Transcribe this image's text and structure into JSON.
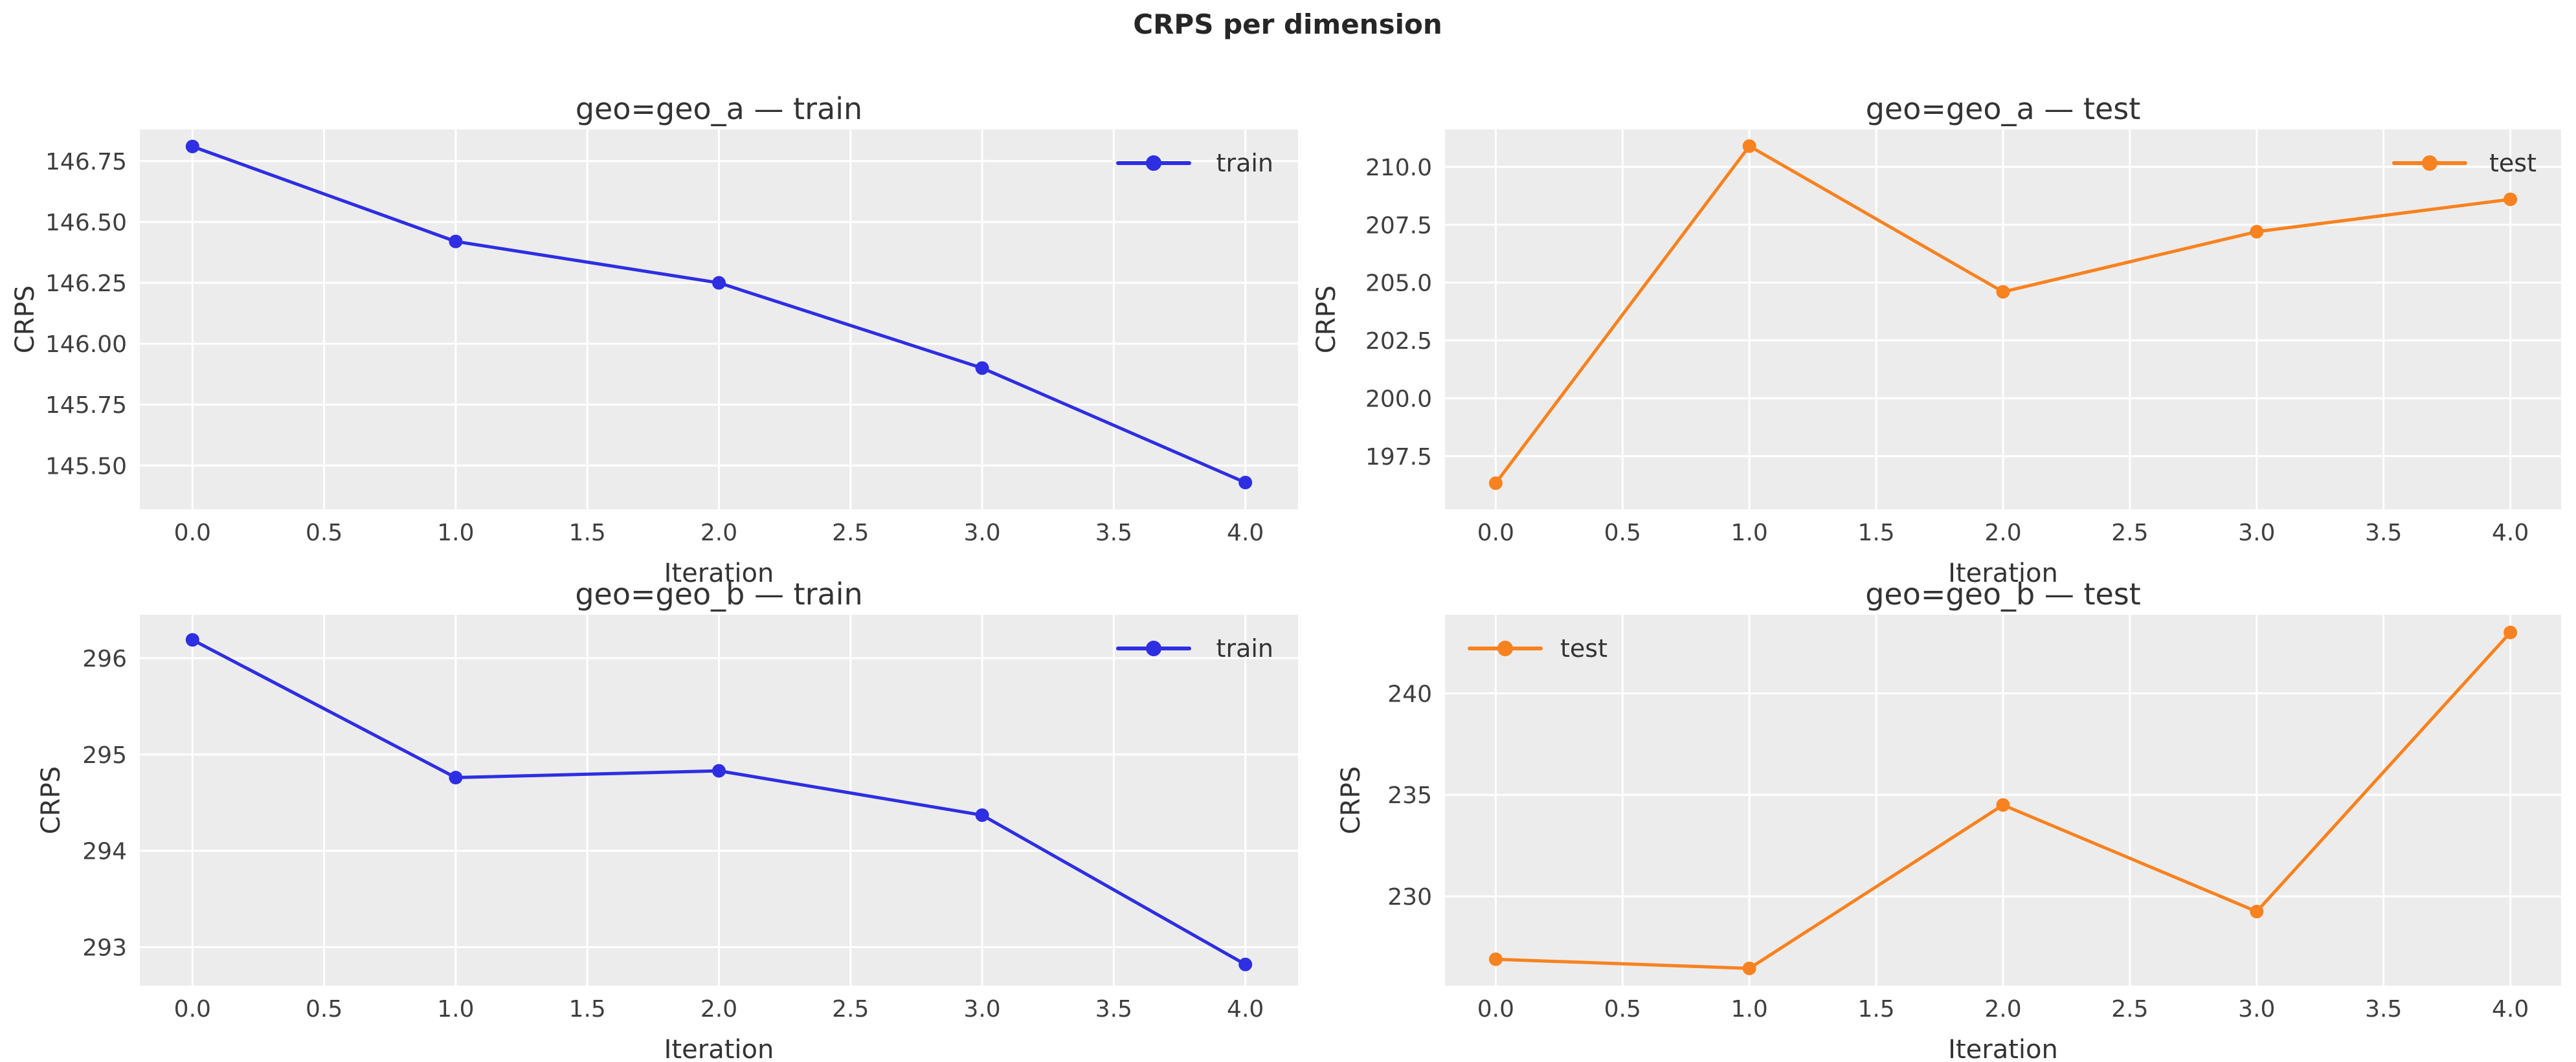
{
  "figure": {
    "suptitle": "CRPS per dimension",
    "background_color": "#ffffff",
    "axes_background_color": "#ececec",
    "grid_color": "#ffffff",
    "train_color": "#2e2ee2",
    "test_color": "#f8821f"
  },
  "chart_data": [
    {
      "type": "line",
      "title": "geo=geo_a — train",
      "xlabel": "Iteration",
      "ylabel": "CRPS",
      "series": [
        {
          "name": "train",
          "color": "#2e2ee2",
          "x": [
            0,
            1,
            2,
            3,
            4
          ],
          "values": [
            146.81,
            146.42,
            146.25,
            145.9,
            145.43
          ]
        }
      ],
      "legend": {
        "label": "train",
        "position": "upper-right"
      },
      "xlim": [
        -0.2,
        4.2
      ],
      "ylim": [
        145.32,
        146.88
      ],
      "xticks": [
        0.0,
        0.5,
        1.0,
        1.5,
        2.0,
        2.5,
        3.0,
        3.5,
        4.0
      ],
      "yticks": [
        145.5,
        145.75,
        146.0,
        146.25,
        146.5,
        146.75
      ],
      "xtick_decimals": 1,
      "ytick_decimals": 2,
      "grid": true,
      "legend_frame": false
    },
    {
      "type": "line",
      "title": "geo=geo_a — test",
      "xlabel": "Iteration",
      "ylabel": "CRPS",
      "series": [
        {
          "name": "test",
          "color": "#f8821f",
          "x": [
            0,
            1,
            2,
            3,
            4
          ],
          "values": [
            196.33,
            210.9,
            204.6,
            207.2,
            208.6
          ]
        }
      ],
      "legend": {
        "label": "test",
        "position": "upper-right"
      },
      "xlim": [
        -0.2,
        4.2
      ],
      "ylim": [
        195.2,
        211.62
      ],
      "xticks": [
        0.0,
        0.5,
        1.0,
        1.5,
        2.0,
        2.5,
        3.0,
        3.5,
        4.0
      ],
      "yticks": [
        197.5,
        200.0,
        202.5,
        205.0,
        207.5,
        210.0
      ],
      "xtick_decimals": 1,
      "ytick_decimals": 1,
      "grid": true,
      "legend_frame": false
    },
    {
      "type": "line",
      "title": "geo=geo_b — train",
      "xlabel": "Iteration",
      "ylabel": "CRPS",
      "series": [
        {
          "name": "train",
          "color": "#2e2ee2",
          "x": [
            0,
            1,
            2,
            3,
            4
          ],
          "values": [
            296.19,
            294.76,
            294.83,
            294.37,
            292.82
          ]
        }
      ],
      "legend": {
        "label": "train",
        "position": "upper-right"
      },
      "xlim": [
        -0.2,
        4.2
      ],
      "ylim": [
        292.6,
        296.45
      ],
      "xticks": [
        0.0,
        0.5,
        1.0,
        1.5,
        2.0,
        2.5,
        3.0,
        3.5,
        4.0
      ],
      "yticks": [
        293,
        294,
        295,
        296
      ],
      "xtick_decimals": 1,
      "ytick_decimals": 0,
      "grid": true,
      "legend_frame": false
    },
    {
      "type": "line",
      "title": "geo=geo_b — test",
      "xlabel": "Iteration",
      "ylabel": "CRPS",
      "series": [
        {
          "name": "test",
          "color": "#f8821f",
          "x": [
            0,
            1,
            2,
            3,
            4
          ],
          "values": [
            226.9,
            226.45,
            234.5,
            229.25,
            243.0
          ]
        }
      ],
      "legend": {
        "label": "test",
        "position": "upper-left"
      },
      "xlim": [
        -0.2,
        4.2
      ],
      "ylim": [
        225.6,
        243.87
      ],
      "xticks": [
        0.0,
        0.5,
        1.0,
        1.5,
        2.0,
        2.5,
        3.0,
        3.5,
        4.0
      ],
      "yticks": [
        230,
        235,
        240
      ],
      "xtick_decimals": 1,
      "ytick_decimals": 0,
      "grid": true,
      "legend_frame": false
    }
  ]
}
